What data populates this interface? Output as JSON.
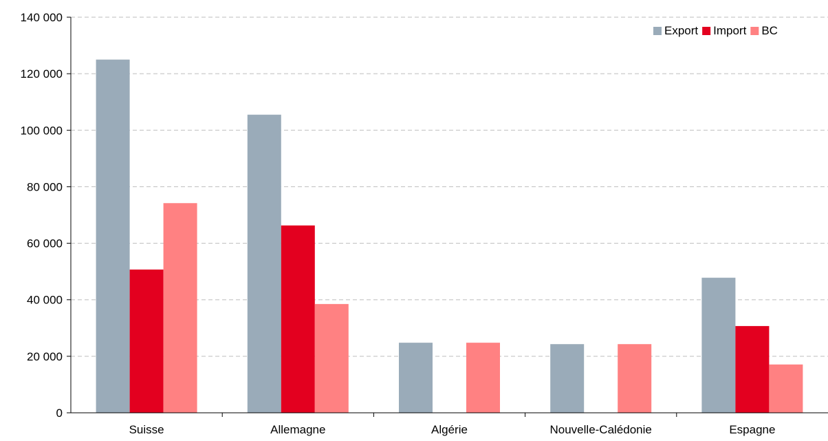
{
  "chart_data": {
    "type": "bar",
    "categories": [
      "Suisse",
      "Allemagne",
      "Algérie",
      "Nouvelle-Calédonie",
      "Espagne"
    ],
    "series": [
      {
        "name": "Export",
        "color": "#9aabb9",
        "values": [
          125000,
          105500,
          24800,
          24300,
          47800
        ]
      },
      {
        "name": "Import",
        "color": "#e3001f",
        "values": [
          50700,
          66300,
          0,
          0,
          30700
        ]
      },
      {
        "name": "BC",
        "color": "#ff8182",
        "values": [
          74200,
          38500,
          24800,
          24300,
          17100
        ]
      }
    ],
    "ylim": [
      0,
      140000
    ],
    "yticks": [
      0,
      20000,
      40000,
      60000,
      80000,
      100000,
      120000,
      140000
    ],
    "ytick_labels": [
      "0",
      "20 000",
      "40 000",
      "60 000",
      "80 000",
      "100 000",
      "120 000",
      "140 000"
    ],
    "grid": true,
    "legend_position": "top-right"
  }
}
